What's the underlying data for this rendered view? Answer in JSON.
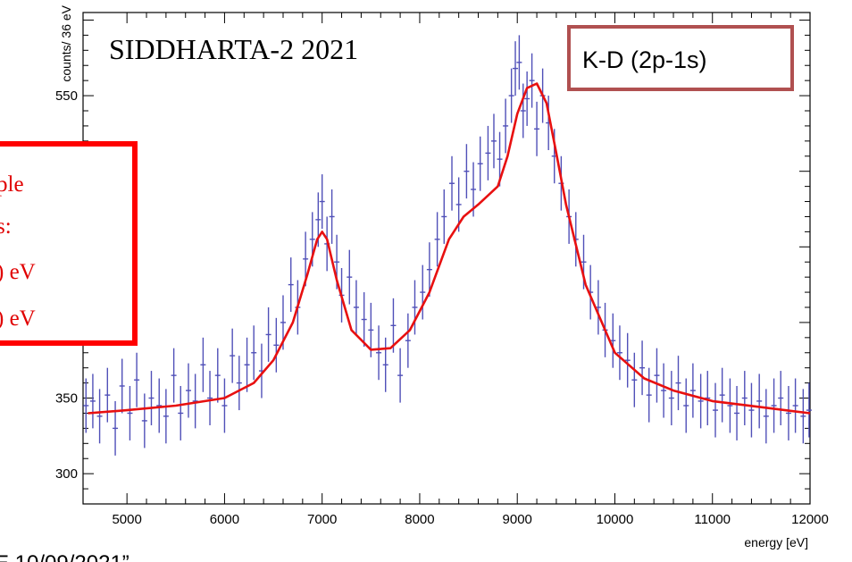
{
  "chart_data": {
    "type": "scatter",
    "title": "SIDDHARTA-2  2021",
    "xlabel": "energy [eV]",
    "ylabel": "counts/ 36 eV",
    "xlim": [
      4550,
      12000
    ],
    "ylim": [
      280,
      605
    ],
    "x_ticks": [
      "5000",
      "6000",
      "7000",
      "8000",
      "9000",
      "10000",
      "11000",
      "12000"
    ],
    "y_ticks": [
      "300",
      "350",
      "550"
    ],
    "label_box": "K-D (2p-1s)",
    "annotation_lines": [
      "ple",
      "s:",
      ") eV",
      ") eV"
    ],
    "footer_text": "E 10/09/2021”",
    "colors": {
      "data": "#5050b8",
      "fit": "#e81010",
      "annotation_border": "#ff0000",
      "label_box_border": "#b05050"
    },
    "series": [
      {
        "type": "errorbar",
        "x": [
          4580,
          4650,
          4720,
          4800,
          4880,
          4950,
          5030,
          5100,
          5180,
          5250,
          5330,
          5400,
          5480,
          5550,
          5630,
          5700,
          5780,
          5850,
          5930,
          6000,
          6080,
          6150,
          6230,
          6300,
          6380,
          6450,
          6530,
          6600,
          6680,
          6750,
          6830,
          6900,
          6960,
          7000,
          7050,
          7100,
          7150,
          7200,
          7280,
          7350,
          7430,
          7500,
          7580,
          7650,
          7730,
          7800,
          7880,
          7950,
          8030,
          8100,
          8180,
          8250,
          8330,
          8400,
          8480,
          8550,
          8620,
          8700,
          8760,
          8820,
          8880,
          8940,
          8980,
          9020,
          9060,
          9100,
          9150,
          9200,
          9260,
          9320,
          9380,
          9450,
          9530,
          9600,
          9680,
          9750,
          9830,
          9900,
          9980,
          10050,
          10130,
          10200,
          10280,
          10350,
          10430,
          10500,
          10580,
          10650,
          10730,
          10800,
          10880,
          10950,
          11030,
          11100,
          11180,
          11250,
          11330,
          11400,
          11480,
          11550,
          11630,
          11700,
          11780,
          11850,
          11930,
          11990
        ],
        "y": [
          345,
          348,
          338,
          352,
          330,
          358,
          340,
          362,
          335,
          350,
          345,
          338,
          365,
          340,
          355,
          348,
          372,
          350,
          365,
          345,
          378,
          360,
          372,
          380,
          368,
          392,
          385,
          400,
          425,
          410,
          442,
          455,
          468,
          480,
          452,
          470,
          440,
          418,
          430,
          410,
          402,
          395,
          380,
          372,
          398,
          365,
          388,
          410,
          420,
          435,
          455,
          470,
          492,
          478,
          500,
          488,
          505,
          512,
          520,
          508,
          530,
          550,
          568,
          572,
          540,
          548,
          560,
          528,
          550,
          532,
          510,
          492,
          470,
          455,
          440,
          420,
          410,
          395,
          388,
          380,
          375,
          362,
          370,
          352,
          365,
          355,
          350,
          360,
          345,
          355,
          348,
          350,
          342,
          352,
          345,
          340,
          350,
          342,
          348,
          338,
          345,
          350,
          340,
          345,
          338,
          342
        ],
        "error": 18
      },
      {
        "name": "fit",
        "type": "line",
        "x": [
          4600,
          5000,
          5500,
          6000,
          6300,
          6500,
          6700,
          6850,
          6950,
          7000,
          7050,
          7150,
          7300,
          7500,
          7700,
          7900,
          8100,
          8300,
          8450,
          8600,
          8700,
          8800,
          8900,
          9000,
          9100,
          9200,
          9300,
          9400,
          9500,
          9700,
          10000,
          10300,
          10600,
          11000,
          11500,
          12000
        ],
        "y": [
          340,
          342,
          345,
          350,
          360,
          375,
          400,
          432,
          455,
          460,
          455,
          428,
          395,
          382,
          383,
          395,
          420,
          455,
          470,
          478,
          484,
          490,
          510,
          538,
          555,
          558,
          545,
          512,
          478,
          425,
          380,
          363,
          355,
          348,
          344,
          340
        ]
      }
    ]
  }
}
